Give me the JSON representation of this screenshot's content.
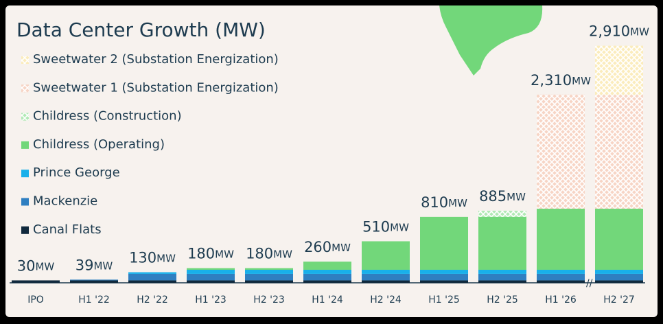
{
  "chart_data": {
    "type": "stacked_bar",
    "title": "Data Center Growth (MW)",
    "categories": [
      "IPO",
      "H1 '22",
      "H2 '22",
      "H1 '23",
      "H2 '23",
      "H1 '24",
      "H2 '24",
      "H1 '25",
      "H2 '25",
      "H1 '26",
      "H2 '27"
    ],
    "series": [
      {
        "name": "Canal Flats",
        "color": "#10293d",
        "values": [
          30,
          30,
          30,
          30,
          30,
          30,
          30,
          30,
          30,
          30,
          30
        ]
      },
      {
        "name": "Mackenzie",
        "color": "#2f7fc1",
        "values": [
          0,
          9,
          80,
          80,
          80,
          80,
          80,
          80,
          80,
          80,
          80
        ]
      },
      {
        "name": "Prince George",
        "color": "#19b0ea",
        "values": [
          0,
          0,
          20,
          50,
          50,
          50,
          50,
          50,
          50,
          50,
          50
        ]
      },
      {
        "name": "Childress (Operating)",
        "color": "#72d77a",
        "values": [
          0,
          0,
          0,
          20,
          20,
          100,
          350,
          650,
          650,
          750,
          750
        ]
      },
      {
        "name": "Childress (Construction)",
        "color": "#72d77a",
        "pattern": "crosshatch",
        "values": [
          0,
          0,
          0,
          0,
          0,
          0,
          0,
          0,
          75,
          0,
          0
        ]
      },
      {
        "name": "Sweetwater 1 (Substation Energization)",
        "color": "#f1b396",
        "pattern": "crosshatch",
        "values": [
          0,
          0,
          0,
          0,
          0,
          0,
          0,
          0,
          0,
          1400,
          1400
        ]
      },
      {
        "name": "Sweetwater 2 (Substation Energization)",
        "color": "#f7dd86",
        "pattern": "crosshatch",
        "values": [
          0,
          0,
          0,
          0,
          0,
          0,
          0,
          0,
          0,
          0,
          600
        ]
      }
    ],
    "totals": [
      30,
      39,
      130,
      180,
      180,
      260,
      510,
      810,
      885,
      2310,
      2910
    ],
    "total_labels": [
      "30",
      "39",
      "130",
      "180",
      "180",
      "260",
      "510",
      "810",
      "885",
      "2,310",
      "2,910"
    ],
    "total_unit": "MW",
    "ylim": [
      0,
      3000
    ]
  }
}
